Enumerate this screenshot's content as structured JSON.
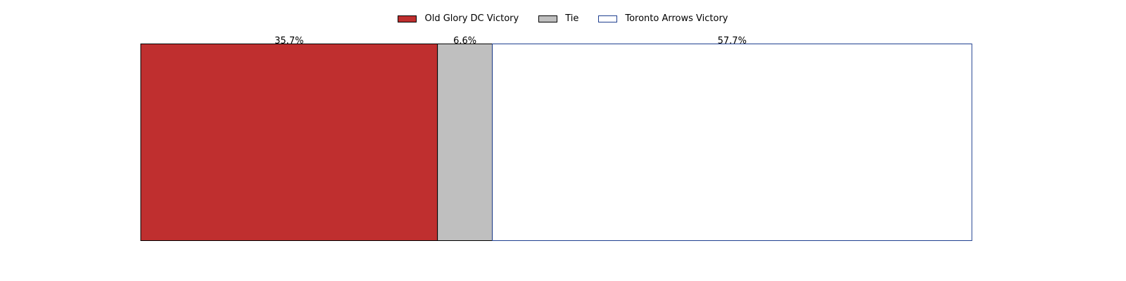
{
  "chart_data": {
    "type": "bar",
    "orientation": "horizontal",
    "stacked": true,
    "normalized_percent": true,
    "title": "",
    "xlabel": "",
    "ylabel": "",
    "grid": false,
    "axes_visible": false,
    "legend_position": "top-center",
    "categories": [
      ""
    ],
    "series": [
      {
        "name": "Old Glory DC Victory",
        "values": [
          35.7
        ],
        "label": "35.7%",
        "fill": "#bf2f2f",
        "edge": "#000000"
      },
      {
        "name": "Tie",
        "values": [
          6.6
        ],
        "label": "6.6%",
        "fill": "#bfbfbf",
        "edge": "#000000"
      },
      {
        "name": "Toronto Arrows Victory",
        "values": [
          57.7
        ],
        "label": "57.7%",
        "fill": "#ffffff",
        "edge": "#1f3f8f"
      }
    ],
    "xlim": [
      0,
      100
    ]
  }
}
